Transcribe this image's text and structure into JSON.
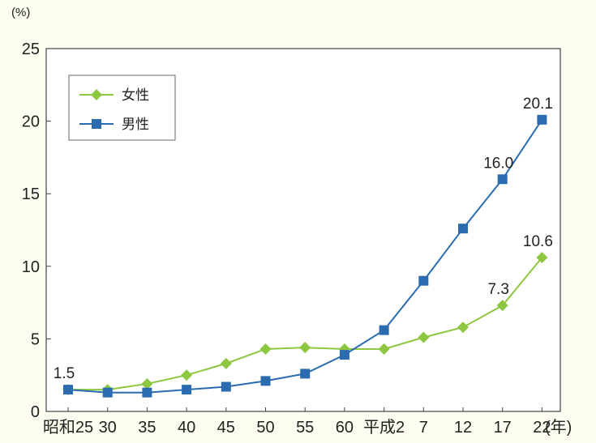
{
  "chart_data": {
    "type": "line",
    "y_unit": "(%)",
    "x_unit": "(年)",
    "ylim": [
      0,
      25
    ],
    "y_ticks": [
      "0",
      "5",
      "10",
      "15",
      "20",
      "25"
    ],
    "categories": [
      "昭和25",
      "30",
      "35",
      "40",
      "45",
      "50",
      "55",
      "60",
      "平成2",
      "7",
      "12",
      "17",
      "22"
    ],
    "grid": false,
    "legend_position": "top-left",
    "series": [
      {
        "name": "女性",
        "color": "#8dc63f",
        "marker": "diamond",
        "values": [
          1.5,
          1.5,
          1.9,
          2.5,
          3.3,
          4.3,
          4.4,
          4.3,
          4.3,
          5.1,
          5.8,
          7.3,
          10.6
        ]
      },
      {
        "name": "男性",
        "color": "#2b6cb0",
        "marker": "square",
        "values": [
          1.5,
          1.3,
          1.3,
          1.5,
          1.7,
          2.1,
          2.6,
          3.9,
          5.6,
          9.0,
          12.6,
          16.0,
          20.1
        ]
      }
    ],
    "annotations": [
      {
        "text": "1.5",
        "series": 0,
        "index": 0
      },
      {
        "text": "7.3",
        "series": 0,
        "index": 11
      },
      {
        "text": "10.6",
        "series": 0,
        "index": 12
      },
      {
        "text": "16.0",
        "series": 1,
        "index": 11
      },
      {
        "text": "20.1",
        "series": 1,
        "index": 12
      }
    ]
  }
}
